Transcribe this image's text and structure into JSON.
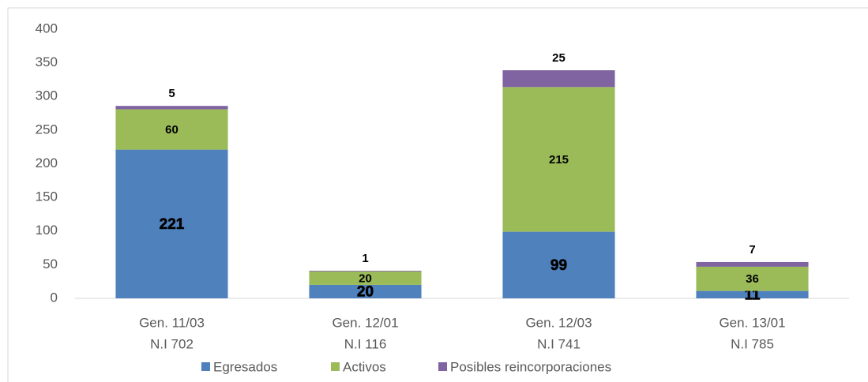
{
  "chart_data": {
    "type": "stacked_bar",
    "categories": [
      [
        "Gen. 11/03",
        "N.I 702"
      ],
      [
        "Gen. 12/01",
        "N.I  116"
      ],
      [
        "Gen. 12/03",
        "N.I 741"
      ],
      [
        "Gen. 13/01",
        "N.I 785"
      ]
    ],
    "series": [
      {
        "name": "Egresados",
        "color": "#4f81bd",
        "values": [
          221,
          20,
          99,
          11
        ]
      },
      {
        "name": "Activos",
        "color": "#9bbb59",
        "values": [
          60,
          20,
          215,
          36
        ]
      },
      {
        "name": "Posibles reincorporaciones",
        "color": "#8064a2",
        "values": [
          5,
          1,
          25,
          7
        ]
      }
    ],
    "ylim": [
      0,
      400
    ],
    "yticks": [
      0,
      50,
      100,
      150,
      200,
      250,
      300,
      350,
      400
    ],
    "grid": false,
    "legend": "bottom"
  }
}
